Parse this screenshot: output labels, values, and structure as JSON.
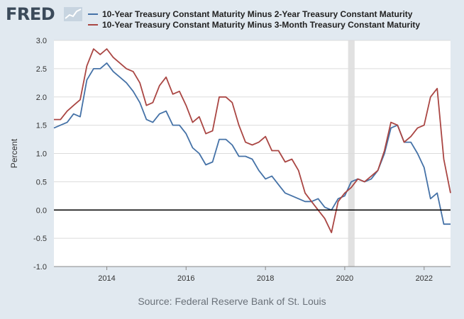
{
  "header": {
    "logo_text": "FRED",
    "logo_icon": "trend-graph-icon"
  },
  "colors": {
    "background": "#e1e9f0",
    "plot_background": "#ffffff",
    "series_1": "#4572a7",
    "series_2": "#aa4643",
    "recession_shading": "#e1e1e1",
    "zero_line": "#000000"
  },
  "chart_data": {
    "type": "line",
    "ylabel": "Percent",
    "ylim": [
      -1.0,
      3.0
    ],
    "xlim": [
      "2012-09-01",
      "2022-09-01"
    ],
    "x_ticks": [
      "2014",
      "2016",
      "2018",
      "2020",
      "2022"
    ],
    "y_ticks": [
      "3.0",
      "2.5",
      "2.0",
      "1.5",
      "1.0",
      "0.5",
      "0.0",
      "-0.5",
      "-1.0"
    ],
    "grid": true,
    "legend": "top",
    "recession_band": [
      "2020-02-01",
      "2020-04-01"
    ],
    "reference_line": 0.0,
    "series": [
      {
        "name": "10-Year Treasury Constant Maturity Minus 2-Year Treasury Constant Maturity",
        "color": "#4572a7",
        "x": [
          "2012-09-01",
          "2012-11-01",
          "2013-01-01",
          "2013-03-01",
          "2013-05-01",
          "2013-07-01",
          "2013-09-01",
          "2013-11-01",
          "2014-01-01",
          "2014-03-01",
          "2014-05-01",
          "2014-07-01",
          "2014-09-01",
          "2014-11-01",
          "2015-01-01",
          "2015-03-01",
          "2015-05-01",
          "2015-07-01",
          "2015-09-01",
          "2015-11-01",
          "2016-01-01",
          "2016-03-01",
          "2016-05-01",
          "2016-07-01",
          "2016-09-01",
          "2016-11-01",
          "2017-01-01",
          "2017-03-01",
          "2017-05-01",
          "2017-07-01",
          "2017-09-01",
          "2017-11-01",
          "2018-01-01",
          "2018-03-01",
          "2018-05-01",
          "2018-07-01",
          "2018-09-01",
          "2018-11-01",
          "2019-01-01",
          "2019-03-01",
          "2019-05-01",
          "2019-07-01",
          "2019-09-01",
          "2019-11-01",
          "2020-01-01",
          "2020-03-01",
          "2020-05-01",
          "2020-07-01",
          "2020-09-01",
          "2020-11-01",
          "2021-01-01",
          "2021-03-01",
          "2021-05-01",
          "2021-07-01",
          "2021-09-01",
          "2021-11-01",
          "2022-01-01",
          "2022-03-01",
          "2022-05-01",
          "2022-07-01",
          "2022-09-01"
        ],
        "values": [
          1.45,
          1.5,
          1.55,
          1.7,
          1.65,
          2.3,
          2.5,
          2.5,
          2.6,
          2.45,
          2.35,
          2.25,
          2.1,
          1.9,
          1.6,
          1.55,
          1.7,
          1.75,
          1.5,
          1.5,
          1.35,
          1.1,
          1.0,
          0.8,
          0.85,
          1.25,
          1.25,
          1.15,
          0.95,
          0.95,
          0.9,
          0.7,
          0.55,
          0.6,
          0.45,
          0.3,
          0.25,
          0.2,
          0.15,
          0.15,
          0.2,
          0.05,
          0.0,
          0.2,
          0.25,
          0.5,
          0.55,
          0.5,
          0.55,
          0.7,
          1.0,
          1.45,
          1.5,
          1.2,
          1.2,
          1.0,
          0.75,
          0.2,
          0.3,
          -0.25,
          -0.25
        ]
      },
      {
        "name": "10-Year Treasury Constant Maturity Minus 3-Month Treasury Constant Maturity",
        "color": "#aa4643",
        "x": [
          "2012-09-01",
          "2012-11-01",
          "2013-01-01",
          "2013-03-01",
          "2013-05-01",
          "2013-07-01",
          "2013-09-01",
          "2013-11-01",
          "2014-01-01",
          "2014-03-01",
          "2014-05-01",
          "2014-07-01",
          "2014-09-01",
          "2014-11-01",
          "2015-01-01",
          "2015-03-01",
          "2015-05-01",
          "2015-07-01",
          "2015-09-01",
          "2015-11-01",
          "2016-01-01",
          "2016-03-01",
          "2016-05-01",
          "2016-07-01",
          "2016-09-01",
          "2016-11-01",
          "2017-01-01",
          "2017-03-01",
          "2017-05-01",
          "2017-07-01",
          "2017-09-01",
          "2017-11-01",
          "2018-01-01",
          "2018-03-01",
          "2018-05-01",
          "2018-07-01",
          "2018-09-01",
          "2018-11-01",
          "2019-01-01",
          "2019-03-01",
          "2019-05-01",
          "2019-07-01",
          "2019-09-01",
          "2019-11-01",
          "2020-01-01",
          "2020-03-01",
          "2020-05-01",
          "2020-07-01",
          "2020-09-01",
          "2020-11-01",
          "2021-01-01",
          "2021-03-01",
          "2021-05-01",
          "2021-07-01",
          "2021-09-01",
          "2021-11-01",
          "2022-01-01",
          "2022-03-01",
          "2022-05-01",
          "2022-07-01",
          "2022-09-01"
        ],
        "values": [
          1.6,
          1.6,
          1.75,
          1.85,
          1.95,
          2.55,
          2.85,
          2.75,
          2.85,
          2.7,
          2.6,
          2.5,
          2.45,
          2.25,
          1.85,
          1.9,
          2.2,
          2.35,
          2.05,
          2.1,
          1.85,
          1.55,
          1.65,
          1.35,
          1.4,
          2.0,
          2.0,
          1.9,
          1.5,
          1.2,
          1.15,
          1.2,
          1.3,
          1.05,
          1.05,
          0.85,
          0.9,
          0.7,
          0.3,
          0.15,
          0.0,
          -0.15,
          -0.4,
          0.15,
          0.3,
          0.4,
          0.55,
          0.5,
          0.6,
          0.7,
          1.05,
          1.55,
          1.5,
          1.2,
          1.3,
          1.45,
          1.5,
          2.0,
          2.15,
          0.9,
          0.3
        ]
      }
    ]
  },
  "source_text": "Source: Federal Reserve Bank of St. Louis"
}
